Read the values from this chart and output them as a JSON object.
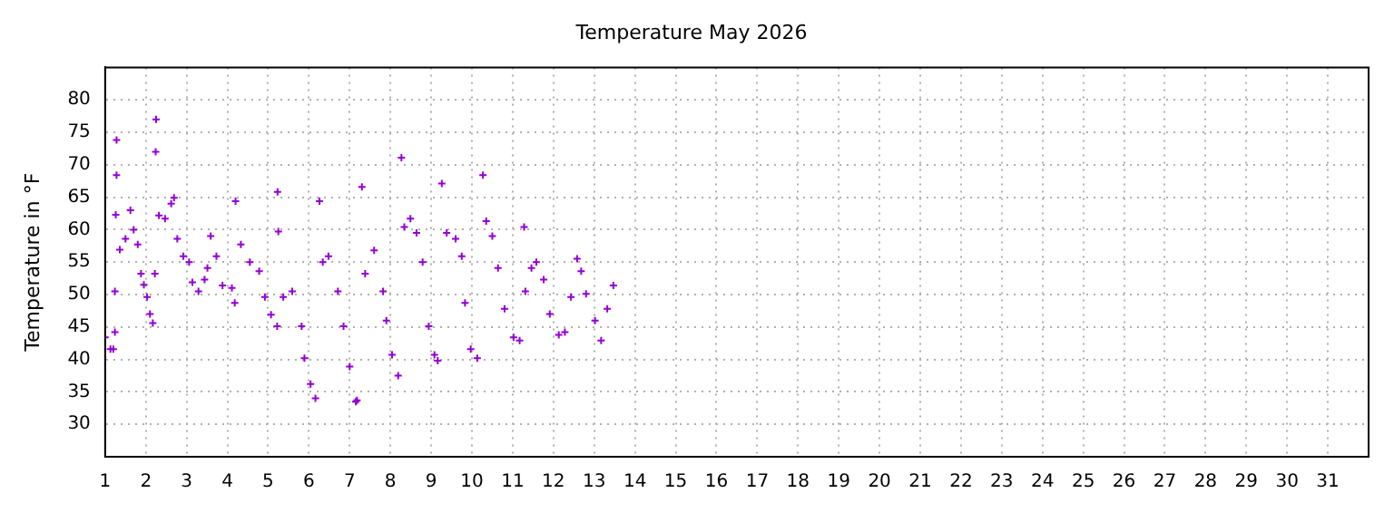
{
  "chart_data": {
    "type": "scatter",
    "title": "Temperature May 2026",
    "ylabel": "Temperature in °F",
    "series": [
      {
        "color": "#9400d3",
        "x": [
          1.0,
          1.13,
          1.2,
          1.24,
          1.24,
          1.26,
          1.28,
          1.28,
          1.36,
          1.5,
          1.62,
          1.7,
          1.8,
          1.88,
          1.95,
          2.03,
          2.1,
          2.17,
          2.22,
          2.24,
          2.25,
          2.32,
          2.47,
          2.62,
          2.69,
          2.77,
          2.92,
          3.06,
          3.14,
          3.29,
          3.44,
          3.51,
          3.59,
          3.73,
          3.88,
          4.11,
          4.18,
          4.2,
          4.33,
          4.55,
          4.78,
          4.92,
          5.07,
          5.22,
          5.23,
          5.25,
          5.37,
          5.59,
          5.82,
          5.89,
          6.04,
          6.16,
          6.26,
          6.34,
          6.48,
          6.71,
          6.85,
          7.0,
          7.15,
          7.18,
          7.3,
          7.38,
          7.6,
          7.82,
          7.9,
          8.04,
          8.19,
          8.27,
          8.34,
          8.49,
          8.64,
          8.79,
          8.94,
          9.08,
          9.16,
          9.26,
          9.38,
          9.6,
          9.75,
          9.83,
          9.97,
          10.13,
          10.27,
          10.35,
          10.5,
          10.64,
          10.8,
          11.02,
          11.17,
          11.28,
          11.31,
          11.46,
          11.58,
          11.76,
          11.91,
          12.13,
          12.28,
          12.43,
          12.58,
          12.68,
          12.8,
          13.02,
          13.17,
          13.32,
          13.47
        ],
        "values": [
          43.4,
          41.6,
          41.6,
          44.2,
          50.5,
          62.3,
          68.4,
          73.8,
          56.9,
          58.6,
          63,
          60,
          57.7,
          53.2,
          51.5,
          49.6,
          47,
          45.6,
          53.2,
          72,
          77,
          62.2,
          61.7,
          64,
          64.9,
          58.6,
          55.9,
          55,
          51.9,
          50.5,
          52.3,
          54.1,
          59,
          55.9,
          51.4,
          51,
          48.7,
          64.4,
          57.7,
          55,
          53.6,
          49.6,
          46.9,
          45.1,
          65.8,
          59.7,
          49.6,
          50.5,
          45.1,
          40.2,
          36.2,
          34,
          64.4,
          55,
          55.9,
          50.5,
          45.1,
          38.9,
          33.5,
          33.7,
          66.6,
          53.2,
          56.8,
          50.5,
          46,
          40.7,
          37.5,
          71.1,
          60.4,
          61.7,
          59.5,
          55,
          45.1,
          40.7,
          39.8,
          67.1,
          59.5,
          58.6,
          55.9,
          48.7,
          41.6,
          40.2,
          68.4,
          61.3,
          59,
          54.1,
          47.8,
          43.4,
          42.9,
          60.4,
          50.5,
          54.1,
          55,
          52.3,
          47,
          43.8,
          44.2,
          49.6,
          55.5,
          53.6,
          50.1,
          46,
          42.9,
          47.8,
          51.4
        ]
      }
    ],
    "xlim": [
      1,
      32
    ],
    "xticks": [
      1,
      2,
      3,
      4,
      5,
      6,
      7,
      8,
      9,
      10,
      11,
      12,
      13,
      14,
      15,
      16,
      17,
      18,
      19,
      20,
      21,
      22,
      23,
      24,
      25,
      26,
      27,
      28,
      29,
      30,
      31
    ],
    "ylim": [
      25,
      85
    ],
    "yticks": [
      30,
      35,
      40,
      45,
      50,
      55,
      60,
      65,
      70,
      75,
      80
    ],
    "grid": true,
    "marker": "cross",
    "legend": false
  }
}
